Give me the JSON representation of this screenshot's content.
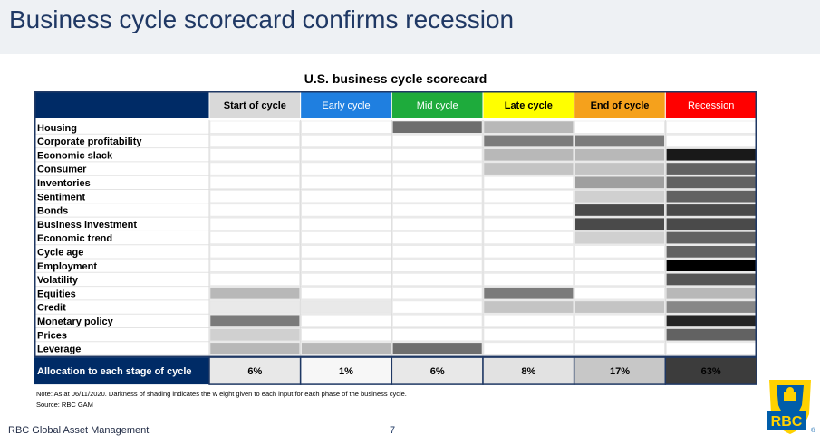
{
  "page": {
    "title": "Business cycle scorecard confirms recession",
    "brand": "RBC Global Asset Management",
    "page_number": "7",
    "logo_text": "RBC"
  },
  "chart_data": {
    "type": "table",
    "title": "U.S. business cycle scorecard",
    "stages": [
      {
        "label": "Start of cycle",
        "color": "#d9d9d9",
        "text_color": "#000000"
      },
      {
        "label": "Early cycle",
        "color": "#1f7fe0",
        "text_color": "#ffffff"
      },
      {
        "label": "Mid cycle",
        "color": "#1eab3c",
        "text_color": "#ffffff"
      },
      {
        "label": "Late cycle",
        "color": "#ffff00",
        "text_color": "#000000"
      },
      {
        "label": "End of cycle",
        "color": "#f5a11c",
        "text_color": "#000000"
      },
      {
        "label": "Recession",
        "color": "#ff0000",
        "text_color": "#ffffff"
      }
    ],
    "header_corner_color": "#002b66",
    "rows": [
      {
        "label": "Housing",
        "weights": [
          0,
          0,
          0.55,
          0.25,
          0,
          0
        ]
      },
      {
        "label": "Corporate profitability",
        "weights": [
          0,
          0,
          0,
          0.5,
          0.5,
          0
        ]
      },
      {
        "label": "Economic slack",
        "weights": [
          0,
          0,
          0,
          0.25,
          0.25,
          0.9
        ]
      },
      {
        "label": "Consumer",
        "weights": [
          0,
          0,
          0,
          0.2,
          0.2,
          0.6
        ]
      },
      {
        "label": "Inventories",
        "weights": [
          0,
          0,
          0,
          0,
          0.35,
          0.6
        ]
      },
      {
        "label": "Sentiment",
        "weights": [
          0,
          0,
          0,
          0,
          0.15,
          0.6
        ]
      },
      {
        "label": "Bonds",
        "weights": [
          0,
          0,
          0,
          0,
          0.7,
          0.7
        ]
      },
      {
        "label": "Business investment",
        "weights": [
          0,
          0,
          0,
          0,
          0.7,
          0.7
        ]
      },
      {
        "label": "Economic trend",
        "weights": [
          0,
          0,
          0,
          0,
          0.15,
          0.6
        ]
      },
      {
        "label": "Cycle age",
        "weights": [
          0,
          0,
          0,
          0,
          0,
          0.6
        ]
      },
      {
        "label": "Employment",
        "weights": [
          0,
          0,
          0,
          0,
          0,
          1.0
        ]
      },
      {
        "label": "Volatility",
        "weights": [
          0,
          0,
          0,
          0,
          0,
          0.65
        ]
      },
      {
        "label": "Equities",
        "weights": [
          0.25,
          0,
          0,
          0.5,
          0,
          0.25
        ]
      },
      {
        "label": "Credit",
        "weights": [
          0.05,
          0.05,
          0,
          0.2,
          0.2,
          0.45
        ]
      },
      {
        "label": "Monetary policy",
        "weights": [
          0.5,
          0,
          0,
          0,
          0,
          0.85
        ]
      },
      {
        "label": "Prices",
        "weights": [
          0.15,
          0,
          0,
          0,
          0,
          0.6
        ]
      },
      {
        "label": "Leverage",
        "weights": [
          0.25,
          0.25,
          0.55,
          0,
          0,
          0
        ]
      }
    ],
    "allocation": {
      "label": "Allocation to each stage of cycle",
      "values": [
        "6%",
        "1%",
        "6%",
        "8%",
        "17%",
        "63%"
      ],
      "percent": [
        6,
        1,
        6,
        8,
        17,
        63
      ]
    },
    "note": "Note: As at 06/11/2020. Darkness of shading indicates the w eight given to each input for each phase of the business cycle.",
    "source": "Source: RBC GAM"
  }
}
